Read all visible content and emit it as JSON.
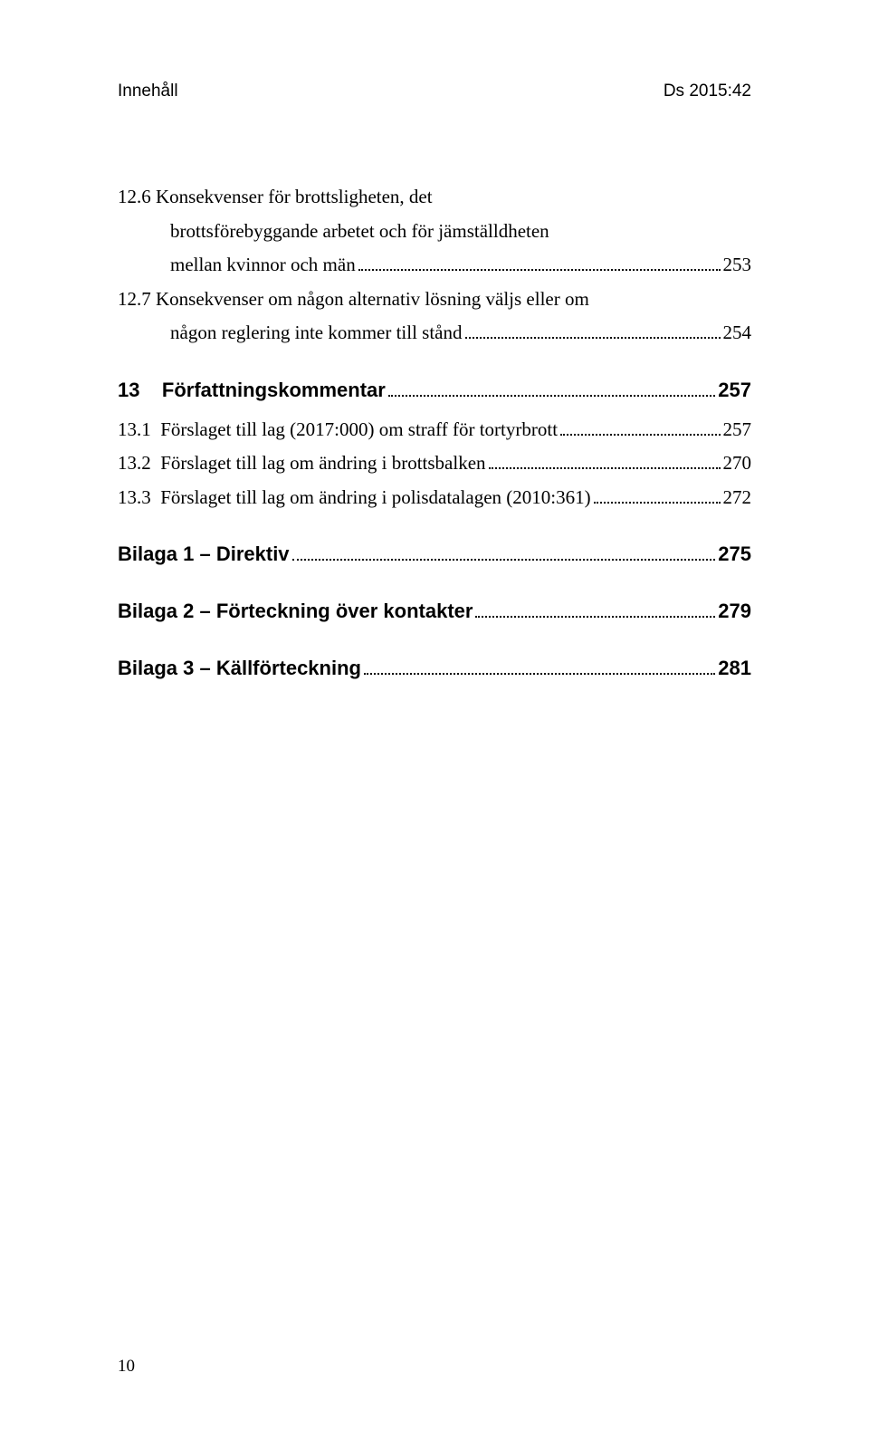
{
  "header": {
    "left": "Innehåll",
    "right": "Ds 2015:42"
  },
  "entries": [
    {
      "type": "multi",
      "num": "12.6",
      "lines": [
        "Konsekvenser för brottsligheten, det",
        "brottsförebyggande arbetet och för jämställdheten"
      ],
      "lastLine": "mellan kvinnor och män",
      "page": "253"
    },
    {
      "type": "multi",
      "num": "12.7",
      "lines": [
        "Konsekvenser om någon alternativ lösning väljs eller om"
      ],
      "lastLine": "någon reglering inte kommer till stånd",
      "page": "254"
    },
    {
      "type": "heading",
      "num": "13",
      "title": "Författningskommentar",
      "page": "257"
    },
    {
      "type": "single",
      "num": "13.1",
      "title": "Förslaget till lag (2017:000) om straff för tortyrbrott",
      "page": "257"
    },
    {
      "type": "single",
      "num": "13.2",
      "title": "Förslaget till lag om ändring i brottsbalken",
      "page": "270"
    },
    {
      "type": "single",
      "num": "13.3",
      "title": "Förslaget till lag om ändring i polisdatalagen (2010:361)",
      "page": "272"
    },
    {
      "type": "bold",
      "title": "Bilaga 1 – Direktiv",
      "page": "275"
    },
    {
      "type": "bold",
      "title": "Bilaga 2 – Förteckning över kontakter",
      "page": "279"
    },
    {
      "type": "bold",
      "title": "Bilaga 3 – Källförteckning",
      "page": "281"
    }
  ],
  "pageNumber": "10"
}
